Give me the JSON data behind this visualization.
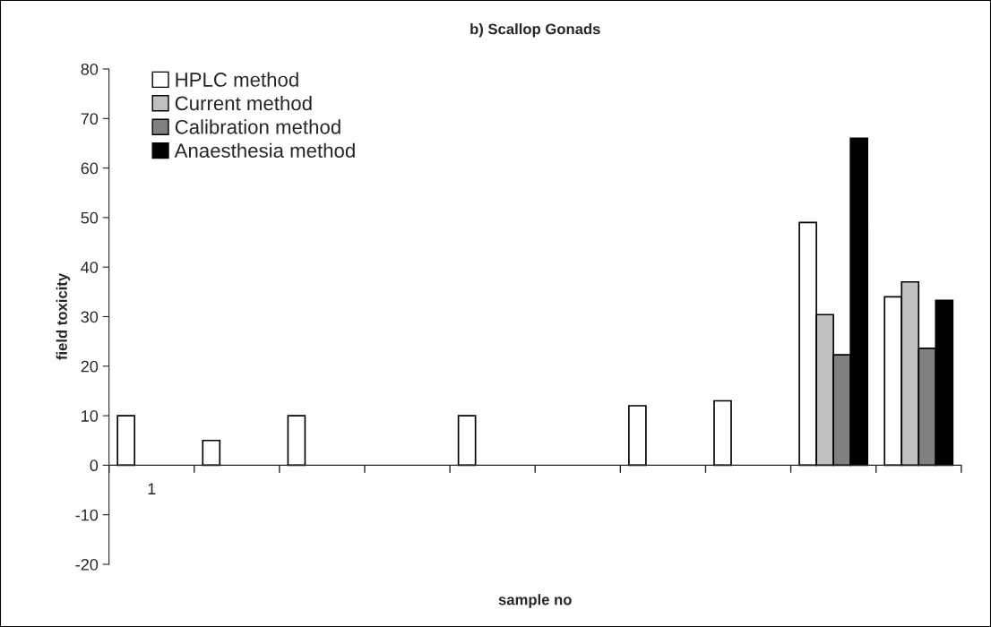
{
  "chart_data": {
    "type": "bar",
    "title": "b) Scallop Gonads",
    "xlabel": "sample no",
    "ylabel": "field toxicity",
    "categories": [
      "1",
      null,
      null,
      null,
      null,
      null,
      null,
      null,
      null,
      null
    ],
    "series": [
      {
        "name": "HPLC method",
        "color": "#ffffff",
        "values": [
          10,
          5,
          10,
          null,
          10,
          null,
          12,
          13,
          49,
          34
        ]
      },
      {
        "name": "Current method",
        "color": "#c0c0c0",
        "values": [
          null,
          null,
          null,
          null,
          null,
          null,
          null,
          null,
          30.4,
          37
        ]
      },
      {
        "name": "Calibration method",
        "color": "#808080",
        "values": [
          null,
          null,
          null,
          null,
          null,
          null,
          null,
          null,
          22.3,
          23.6
        ]
      },
      {
        "name": "Anaesthesia method",
        "color": "#000000",
        "values": [
          null,
          null,
          null,
          null,
          null,
          null,
          null,
          null,
          66,
          33.3
        ]
      }
    ],
    "ylim": [
      -20,
      80
    ],
    "yticks": [
      -20,
      -10,
      0,
      10,
      20,
      30,
      40,
      50,
      60,
      70,
      80
    ],
    "legend": "top left"
  }
}
